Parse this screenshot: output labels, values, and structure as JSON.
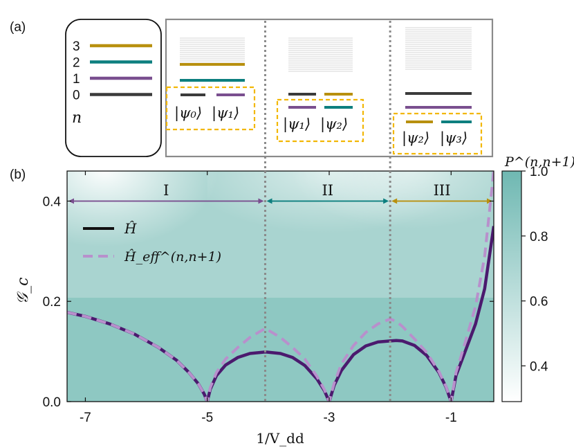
{
  "panels": {
    "a_label": "(a)",
    "b_label": "(b)"
  },
  "legend_box": {
    "levels": [
      {
        "n": "3",
        "color": "#b8900f"
      },
      {
        "n": "2",
        "color": "#0d7f7f"
      },
      {
        "n": "1",
        "color": "#7a4f8f"
      },
      {
        "n": "0",
        "color": "#3b3b3b"
      }
    ],
    "axis_label": "n"
  },
  "regimes_schematic": [
    {
      "ket_left": "|ψ₀⟩",
      "ket_right": "|ψ₁⟩"
    },
    {
      "ket_left": "|ψ₁⟩",
      "ket_right": "|ψ₂⟩"
    },
    {
      "ket_left": "|ψ₂⟩",
      "ket_right": "|ψ₃⟩"
    }
  ],
  "chart_data": {
    "type": "line",
    "title": "",
    "xlabel": "1/V_dd",
    "ylabel": "𝒢_c",
    "xlim": [
      -7.3,
      -0.3
    ],
    "ylim": [
      0.0,
      0.46
    ],
    "xticks": [
      "-7",
      "-5",
      "-3",
      "-1"
    ],
    "xtick_values": [
      -7,
      -5,
      -3,
      -1
    ],
    "yticks": [
      "0.0",
      "0.2",
      "0.4"
    ],
    "ytick_values": [
      0.0,
      0.2,
      0.4
    ],
    "regions": [
      {
        "label": "I",
        "x": [
          -7.3,
          -4.05
        ],
        "color": "#7a4f8f"
      },
      {
        "label": "II",
        "x": [
          -4.05,
          -2.0
        ],
        "color": "#0d7f7f"
      },
      {
        "label": "III",
        "x": [
          -2.0,
          -0.3
        ],
        "color": "#b8900f"
      }
    ],
    "region_arrow_y": 0.4,
    "dividers_x": [
      -4.05,
      -2.0
    ],
    "legend": [
      {
        "name": "Ĥ",
        "style": "solid",
        "color": "#4b1a6e"
      },
      {
        "name": "Ĥ_eff^(n,n+1)",
        "style": "dashed",
        "color": "#b890cc"
      }
    ],
    "series": [
      {
        "name": "Ĥ",
        "x": [
          -7.3,
          -7.0,
          -6.6,
          -6.2,
          -5.8,
          -5.5,
          -5.3,
          -5.15,
          -5.05,
          -5.0,
          -4.95,
          -4.85,
          -4.7,
          -4.5,
          -4.3,
          -4.05,
          -3.8,
          -3.6,
          -3.4,
          -3.2,
          -3.08,
          -3.0,
          -2.92,
          -2.8,
          -2.6,
          -2.4,
          -2.2,
          -2.0,
          -1.9,
          -1.8,
          -1.6,
          -1.4,
          -1.2,
          -1.08,
          -1.0,
          -0.92,
          -0.8,
          -0.6,
          -0.45,
          -0.3
        ],
        "y": [
          0.178,
          0.17,
          0.155,
          0.135,
          0.108,
          0.082,
          0.058,
          0.036,
          0.015,
          0.0,
          0.025,
          0.052,
          0.073,
          0.088,
          0.096,
          0.099,
          0.096,
          0.088,
          0.072,
          0.045,
          0.022,
          0.0,
          0.032,
          0.062,
          0.094,
          0.111,
          0.119,
          0.121,
          0.122,
          0.121,
          0.112,
          0.092,
          0.058,
          0.028,
          0.0,
          0.052,
          0.09,
          0.155,
          0.225,
          0.35
        ]
      },
      {
        "name": "Ĥ_eff^(n,n+1)",
        "x": [
          -7.3,
          -7.0,
          -6.6,
          -6.2,
          -5.8,
          -5.5,
          -5.3,
          -5.15,
          -5.05,
          -5.0,
          -4.95,
          -4.85,
          -4.7,
          -4.5,
          -4.3,
          -4.05,
          -3.8,
          -3.6,
          -3.4,
          -3.2,
          -3.08,
          -3.0,
          -2.92,
          -2.8,
          -2.6,
          -2.4,
          -2.2,
          -2.0,
          -1.9,
          -1.8,
          -1.6,
          -1.4,
          -1.2,
          -1.08,
          -1.0,
          -0.92,
          -0.8,
          -0.6,
          -0.45,
          -0.3
        ],
        "y": [
          0.178,
          0.17,
          0.155,
          0.135,
          0.108,
          0.082,
          0.058,
          0.036,
          0.015,
          0.0,
          0.028,
          0.058,
          0.085,
          0.108,
          0.128,
          0.146,
          0.128,
          0.108,
          0.085,
          0.05,
          0.024,
          0.0,
          0.036,
          0.075,
          0.112,
          0.138,
          0.155,
          0.165,
          0.16,
          0.15,
          0.125,
          0.098,
          0.06,
          0.029,
          0.0,
          0.058,
          0.105,
          0.19,
          0.29,
          0.46
        ]
      }
    ],
    "colorbar": {
      "label": "P^(n,n+1)",
      "range": [
        0.29,
        1.0
      ],
      "ticks": [
        "1.0",
        "0.8",
        "0.6",
        "0.4"
      ],
      "tick_values": [
        1.0,
        0.8,
        0.6,
        0.4
      ],
      "color_low": "#ffffff",
      "color_high": "#6fb8b2"
    },
    "background_heatmap_description_values": {
      "min": 0.29,
      "max": 1.0
    }
  }
}
